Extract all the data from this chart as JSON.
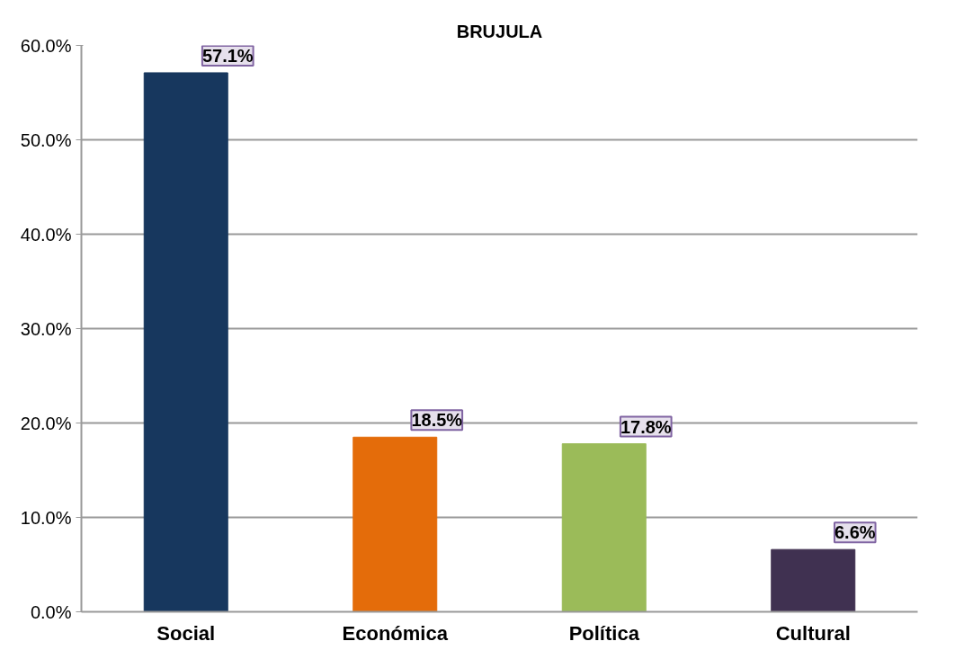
{
  "chart_data": {
    "type": "bar",
    "title": "BRUJULA",
    "categories": [
      "Social",
      "Económica",
      "Política",
      "Cultural"
    ],
    "values": [
      57.1,
      18.5,
      17.8,
      6.6
    ],
    "colors": [
      "#17375e",
      "#e46c0a",
      "#9bbb59",
      "#403151"
    ],
    "value_labels": [
      "57.1%",
      "18.5%",
      "17.8%",
      "6.6%"
    ],
    "ylim": [
      0,
      60
    ],
    "yticks": [
      {
        "value": 0,
        "label": "0.0%"
      },
      {
        "value": 10,
        "label": "10.0%"
      },
      {
        "value": 20,
        "label": "20.0%"
      },
      {
        "value": 30,
        "label": "30.0%"
      },
      {
        "value": 40,
        "label": "40.0%"
      },
      {
        "value": 50,
        "label": "50.0%"
      },
      {
        "value": 60,
        "label": "60.0%"
      }
    ],
    "grid": "y"
  }
}
